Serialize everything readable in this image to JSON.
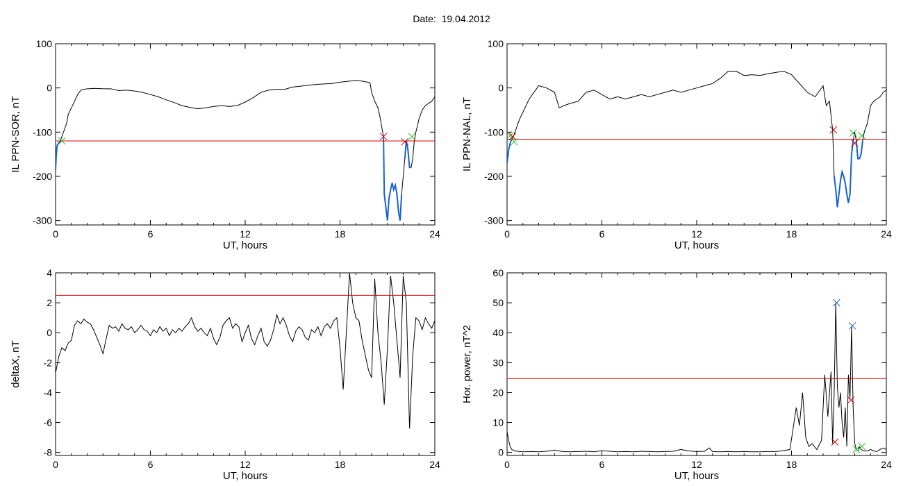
{
  "page": {
    "title": "Date:  19.04.2012"
  },
  "chart_data": [
    {
      "id": "sor",
      "type": "line",
      "xlabel": "UT, hours",
      "ylabel": "IL PPN-SOR, nT",
      "xlim": [
        0,
        24
      ],
      "ylim": [
        -310,
        100
      ],
      "xticks": [
        0,
        6,
        12,
        18,
        24
      ],
      "yticks": [
        100,
        0,
        -100,
        -200,
        -300
      ],
      "threshold": -120,
      "colors": {
        "line": "#000000",
        "threshold": "#e00000",
        "segment": "#1560d8",
        "start_marker": "#1fbf2a",
        "end_marker": "#c80000"
      },
      "series": [
        {
          "x": [
            0.0,
            0.05,
            0.1,
            0.2,
            0.3,
            0.4,
            0.5,
            0.6,
            0.7,
            0.8,
            1.0,
            1.2,
            1.4,
            1.6,
            1.8,
            2.0,
            2.5,
            3.0,
            3.5,
            4.0,
            4.5,
            5.0,
            5.5,
            6.0,
            6.5,
            7.0,
            7.5,
            8.0,
            8.5,
            9.0,
            9.5,
            10.0,
            10.5,
            11.0,
            11.5,
            12.0,
            12.5,
            13.0,
            13.5,
            14.0,
            14.5,
            15.0,
            15.5,
            16.0,
            16.5,
            17.0,
            17.5,
            18.0,
            18.5,
            19.0,
            19.3,
            19.6,
            19.9,
            20.0,
            20.2,
            20.4,
            20.5,
            20.6,
            20.7,
            20.75,
            20.8,
            20.9,
            21.0,
            21.1,
            21.2,
            21.3,
            21.4,
            21.5,
            21.6,
            21.7,
            21.8,
            21.9,
            22.0,
            22.1,
            22.2,
            22.3,
            22.4,
            22.5,
            22.6,
            22.7,
            22.8,
            23.0,
            23.2,
            23.4,
            23.6,
            23.8,
            24.0
          ],
          "y": [
            -185,
            -150,
            -130,
            -125,
            -120,
            -110,
            -100,
            -90,
            -80,
            -60,
            -45,
            -30,
            -15,
            -5,
            -3,
            -2,
            -1,
            -2,
            -2,
            -6,
            -5,
            -7,
            -10,
            -15,
            -20,
            -27,
            -33,
            -40,
            -44,
            -47,
            -45,
            -42,
            -40,
            -42,
            -40,
            -32,
            -22,
            -10,
            -5,
            -3,
            -3,
            2,
            4,
            6,
            8,
            9,
            10,
            13,
            15,
            17,
            16,
            14,
            12,
            -10,
            -30,
            -45,
            -60,
            -80,
            -100,
            -110,
            -240,
            -270,
            -300,
            -250,
            -230,
            -215,
            -230,
            -220,
            -240,
            -280,
            -300,
            -240,
            -200,
            -160,
            -120,
            -140,
            -180,
            -180,
            -160,
            -120,
            -100,
            -70,
            -50,
            -40,
            -35,
            -30,
            -20
          ]
        }
      ],
      "segments": [
        [
          0.0,
          0.3
        ],
        [
          20.75,
          21.95
        ],
        [
          22.1,
          22.55
        ]
      ],
      "start_markers": [
        {
          "x": 0.4,
          "y": -120
        },
        {
          "x": 22.55,
          "y": -110
        }
      ],
      "end_markers": [
        {
          "x": 20.75,
          "y": -110
        },
        {
          "x": 22.1,
          "y": -122
        }
      ]
    },
    {
      "id": "nal",
      "type": "line",
      "xlabel": "UT, hours",
      "ylabel": "IL PPN-NAL, nT",
      "xlim": [
        0,
        24
      ],
      "ylim": [
        -310,
        100
      ],
      "xticks": [
        0,
        6,
        12,
        18,
        24
      ],
      "yticks": [
        100,
        0,
        -100,
        -200,
        -300
      ],
      "threshold": -116,
      "colors": {
        "line": "#000000",
        "threshold": "#e00000",
        "segment": "#1560d8",
        "start_marker": "#1fbf2a",
        "end_marker": "#c80000"
      },
      "series": [
        {
          "x": [
            0.0,
            0.1,
            0.2,
            0.3,
            0.4,
            0.5,
            0.6,
            0.7,
            0.8,
            1.0,
            1.2,
            1.4,
            1.6,
            1.8,
            2.0,
            2.5,
            3.0,
            3.3,
            3.6,
            4.0,
            4.5,
            5.0,
            5.5,
            6.0,
            6.5,
            7.0,
            7.5,
            8.0,
            8.5,
            9.0,
            9.5,
            10.0,
            10.5,
            11.0,
            11.5,
            12.0,
            12.5,
            13.0,
            13.5,
            14.0,
            14.5,
            15.0,
            15.5,
            16.0,
            16.5,
            17.0,
            17.5,
            18.0,
            18.5,
            19.0,
            19.5,
            20.0,
            20.2,
            20.4,
            20.6,
            20.7,
            20.8,
            20.9,
            21.0,
            21.1,
            21.2,
            21.3,
            21.4,
            21.5,
            21.6,
            21.7,
            21.8,
            21.9,
            22.0,
            22.1,
            22.2,
            22.3,
            22.4,
            22.5,
            22.6,
            22.8,
            23.0,
            23.2,
            23.4,
            23.6,
            23.8,
            24.0
          ],
          "y": [
            -170,
            -140,
            -125,
            -115,
            -110,
            -100,
            -90,
            -80,
            -70,
            -55,
            -40,
            -25,
            -15,
            -5,
            5,
            0,
            -10,
            -45,
            -40,
            -35,
            -30,
            -10,
            -5,
            -15,
            -25,
            -20,
            -25,
            -20,
            -15,
            -20,
            -15,
            -10,
            -5,
            -10,
            -5,
            0,
            5,
            10,
            22,
            38,
            38,
            28,
            30,
            28,
            32,
            35,
            38,
            30,
            10,
            -10,
            -20,
            5,
            -40,
            -30,
            -95,
            -200,
            -230,
            -270,
            -240,
            -210,
            -190,
            -200,
            -215,
            -240,
            -260,
            -240,
            -150,
            -120,
            -100,
            -120,
            -160,
            -160,
            -150,
            -120,
            -100,
            -80,
            -40,
            -30,
            -25,
            -20,
            -10,
            -5
          ]
        }
      ],
      "segments": [
        [
          0.0,
          0.3
        ],
        [
          20.7,
          21.95
        ],
        [
          22.1,
          22.5
        ]
      ],
      "start_markers": [
        {
          "x": 0.2,
          "y": -108
        },
        {
          "x": 0.45,
          "y": -122
        },
        {
          "x": 21.9,
          "y": -102
        },
        {
          "x": 22.45,
          "y": -108
        }
      ],
      "end_markers": [
        {
          "x": 0.35,
          "y": -110
        },
        {
          "x": 20.65,
          "y": -95
        },
        {
          "x": 22.0,
          "y": -125
        }
      ]
    },
    {
      "id": "deltax",
      "type": "line",
      "xlabel": "UT, hours",
      "ylabel": "deltaX, nT",
      "xlim": [
        0,
        24
      ],
      "ylim": [
        -8.2,
        4
      ],
      "xticks": [
        0,
        6,
        12,
        18,
        24
      ],
      "yticks": [
        4,
        2,
        0,
        -2,
        -4,
        -6,
        -8
      ],
      "threshold": 2.5,
      "colors": {
        "line": "#000000",
        "threshold": "#e00000"
      },
      "series": [
        {
          "x": [
            0.0,
            0.2,
            0.4,
            0.6,
            0.8,
            1.0,
            1.2,
            1.4,
            1.6,
            1.8,
            2.0,
            2.2,
            2.4,
            2.6,
            2.8,
            3.0,
            3.2,
            3.4,
            3.6,
            3.8,
            4.0,
            4.2,
            4.4,
            4.6,
            4.8,
            5.0,
            5.2,
            5.4,
            5.6,
            5.8,
            6.0,
            6.2,
            6.4,
            6.6,
            6.8,
            7.0,
            7.2,
            7.4,
            7.6,
            7.8,
            8.0,
            8.2,
            8.4,
            8.6,
            8.8,
            9.0,
            9.2,
            9.4,
            9.6,
            9.8,
            10.0,
            10.2,
            10.4,
            10.6,
            10.8,
            11.0,
            11.2,
            11.4,
            11.6,
            11.8,
            12.0,
            12.2,
            12.4,
            12.6,
            12.8,
            13.0,
            13.2,
            13.4,
            13.6,
            13.8,
            14.0,
            14.2,
            14.4,
            14.6,
            14.8,
            15.0,
            15.2,
            15.4,
            15.6,
            15.8,
            16.0,
            16.2,
            16.4,
            16.6,
            16.8,
            17.0,
            17.2,
            17.4,
            17.6,
            17.8,
            18.0,
            18.2,
            18.4,
            18.6,
            18.8,
            19.0,
            19.2,
            19.4,
            19.6,
            19.8,
            20.0,
            20.2,
            20.4,
            20.6,
            20.8,
            21.0,
            21.2,
            21.4,
            21.6,
            21.8,
            22.0,
            22.2,
            22.4,
            22.6,
            22.8,
            23.0,
            23.2,
            23.4,
            23.6,
            23.8,
            24.0
          ],
          "y": [
            -2.7,
            -1.6,
            -1.0,
            -1.2,
            -0.7,
            -0.5,
            0.5,
            0.8,
            0.6,
            0.9,
            0.7,
            0.6,
            0.2,
            -0.3,
            -0.8,
            -1.4,
            -0.4,
            0.5,
            0.3,
            0.4,
            0.1,
            0.6,
            0.3,
            0.2,
            0.4,
            0.0,
            0.2,
            0.5,
            0.2,
            0.1,
            -0.2,
            0.2,
            0.0,
            0.4,
            0.1,
            0.3,
            -0.2,
            0.2,
            0.0,
            0.3,
            0.1,
            0.4,
            0.6,
            1.0,
            0.4,
            0.1,
            0.3,
            0.0,
            -0.2,
            0.3,
            -0.4,
            -0.8,
            -0.3,
            0.5,
            0.8,
            1.0,
            0.3,
            0.6,
            0.4,
            -0.6,
            0.0,
            0.5,
            -0.4,
            -0.8,
            -0.2,
            0.3,
            -0.6,
            -0.9,
            -0.5,
            0.2,
            1.2,
            0.6,
            1.0,
            0.5,
            -0.2,
            -0.6,
            0.1,
            0.4,
            0.2,
            -0.3,
            -0.5,
            0.2,
            0.0,
            0.4,
            -0.2,
            0.4,
            0.6,
            0.3,
            0.8,
            1.0,
            -1.0,
            -3.8,
            0.0,
            4.0,
            2.0,
            1.0,
            0.8,
            -0.5,
            -1.5,
            -2.5,
            -3.0,
            3.6,
            0.0,
            -2.0,
            -4.8,
            -1.0,
            3.8,
            2.0,
            -0.5,
            -3.0,
            3.8,
            2.0,
            -6.4,
            -1.5,
            1.0,
            0.8,
            0.2,
            1.0,
            0.6,
            0.3,
            0.8
          ]
        }
      ]
    },
    {
      "id": "power",
      "type": "line",
      "xlabel": "UT, hours",
      "ylabel": "Hor. power, nT^2",
      "xlim": [
        0,
        24
      ],
      "ylim": [
        -1,
        60
      ],
      "xticks": [
        0,
        6,
        12,
        18,
        24
      ],
      "yticks": [
        60,
        50,
        40,
        30,
        20,
        10,
        0
      ],
      "threshold": 24.7,
      "colors": {
        "line": "#000000",
        "threshold": "#e00000",
        "start_marker": "#1fbf2a",
        "end_marker": "#c80000",
        "peak_marker": "#1a5fd8"
      },
      "series": [
        {
          "x": [
            0.0,
            0.1,
            0.2,
            0.3,
            0.5,
            0.8,
            1.0,
            1.5,
            2.0,
            2.5,
            3.0,
            3.5,
            4.0,
            4.5,
            5.0,
            5.5,
            6.0,
            6.5,
            7.0,
            7.5,
            8.0,
            8.5,
            9.0,
            9.5,
            10.0,
            10.5,
            11.0,
            11.5,
            12.0,
            12.5,
            12.8,
            13.0,
            13.5,
            14.0,
            14.5,
            15.0,
            15.5,
            16.0,
            16.5,
            17.0,
            17.5,
            17.9,
            18.1,
            18.3,
            18.5,
            18.7,
            18.9,
            19.1,
            19.3,
            19.6,
            19.9,
            20.1,
            20.3,
            20.5,
            20.6,
            20.7,
            20.8,
            20.9,
            21.0,
            21.1,
            21.2,
            21.3,
            21.4,
            21.5,
            21.6,
            21.7,
            21.8,
            21.9,
            22.0,
            22.1,
            22.2,
            22.3,
            22.4,
            22.6,
            22.8,
            23.0,
            23.2,
            23.4,
            23.6,
            23.8,
            24.0
          ],
          "y": [
            7.0,
            4.0,
            2.0,
            1.0,
            0.5,
            0.3,
            0.2,
            0.3,
            0.2,
            0.4,
            0.8,
            0.3,
            0.2,
            0.3,
            0.4,
            0.2,
            0.6,
            0.4,
            0.2,
            0.3,
            0.2,
            0.4,
            0.3,
            0.2,
            0.3,
            0.4,
            1.0,
            0.5,
            0.3,
            0.4,
            1.5,
            0.3,
            0.2,
            0.3,
            0.2,
            0.3,
            0.2,
            0.2,
            0.3,
            0.3,
            0.6,
            1.0,
            8.0,
            15.0,
            9.0,
            20.0,
            5.0,
            2.0,
            3.0,
            1.0,
            4.0,
            26.0,
            12.0,
            27.0,
            3.0,
            20.0,
            50.0,
            22.0,
            15.0,
            20.0,
            10.0,
            5.0,
            15.0,
            2.0,
            26.0,
            18.0,
            42.0,
            15.0,
            3.0,
            1.0,
            0.5,
            2.0,
            1.0,
            0.5,
            0.5,
            1.0,
            0.5,
            0.3,
            1.0,
            1.5,
            1.0
          ]
        }
      ],
      "start_markers": [
        {
          "x": 22.1,
          "y": 1.0
        },
        {
          "x": 22.45,
          "y": 2.0
        }
      ],
      "end_markers": [
        {
          "x": 20.75,
          "y": 3.5
        },
        {
          "x": 21.75,
          "y": 17.5
        }
      ],
      "peak_markers": [
        {
          "x": 20.85,
          "y": 50.0
        },
        {
          "x": 21.85,
          "y": 42.3
        }
      ]
    }
  ]
}
